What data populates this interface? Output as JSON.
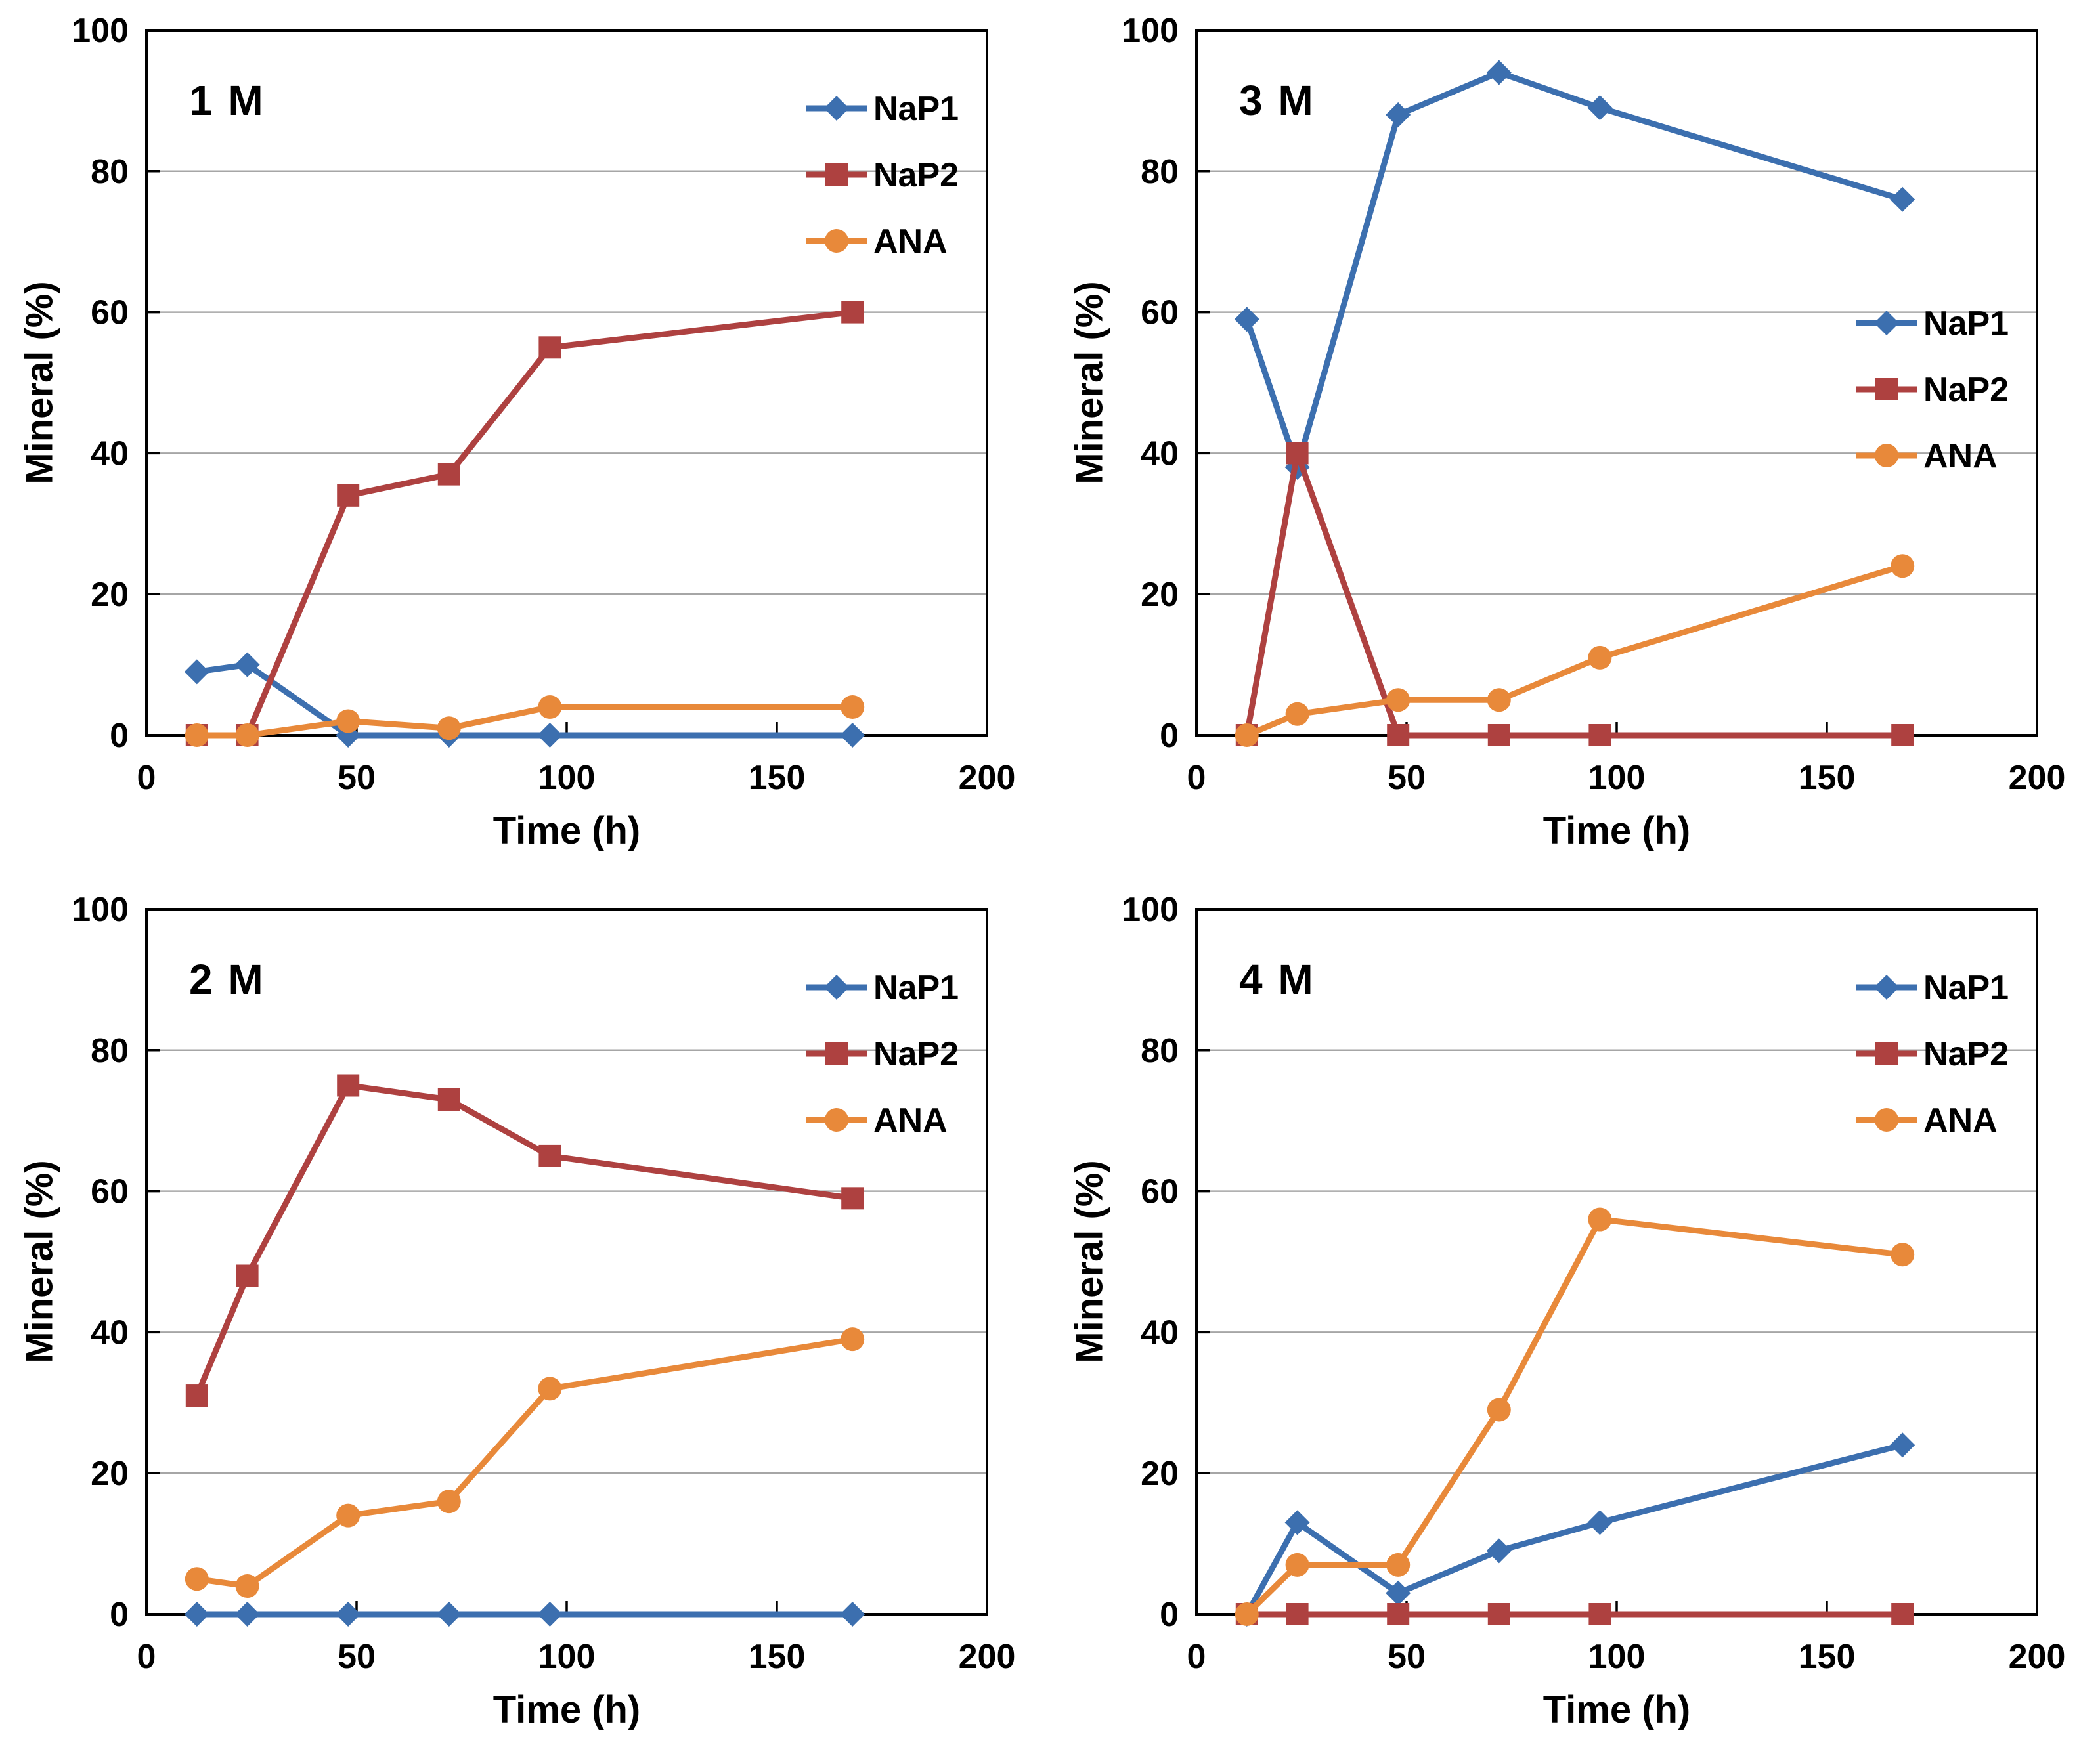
{
  "figure": {
    "background": "#ffffff",
    "text_color": "#000000",
    "grid_color": "#a6a6a6",
    "axis_color": "#000000"
  },
  "chart_data": [
    {
      "type": "line",
      "panel_label": "1 M",
      "xlabel": "Time (h)",
      "ylabel": "Mineral (%)",
      "xlim": [
        0,
        200
      ],
      "ylim": [
        0,
        100
      ],
      "xticks": [
        0,
        50,
        100,
        150,
        200
      ],
      "yticks": [
        0,
        20,
        40,
        60,
        80,
        100
      ],
      "grid": "horizontal",
      "legend_position": "top-right",
      "x": [
        12,
        24,
        48,
        72,
        96,
        168
      ],
      "series": [
        {
          "name": "NaP1",
          "marker": "diamond",
          "color": "#3c6fAF",
          "values": [
            9,
            10,
            0,
            0,
            0,
            0
          ]
        },
        {
          "name": "NaP2",
          "marker": "square",
          "color": "#ae4140",
          "values": [
            0,
            0,
            34,
            37,
            55,
            60
          ]
        },
        {
          "name": "ANA",
          "marker": "circle",
          "color": "#e8893a",
          "values": [
            0,
            0,
            2,
            1,
            4,
            4
          ]
        }
      ]
    },
    {
      "type": "line",
      "panel_label": "3 M",
      "xlabel": "Time (h)",
      "ylabel": "Mineral (%)",
      "xlim": [
        0,
        200
      ],
      "ylim": [
        0,
        100
      ],
      "xticks": [
        0,
        50,
        100,
        150,
        200
      ],
      "yticks": [
        0,
        20,
        40,
        60,
        80,
        100
      ],
      "grid": "horizontal",
      "legend_position": "middle-right",
      "x": [
        12,
        24,
        48,
        72,
        96,
        168
      ],
      "series": [
        {
          "name": "NaP1",
          "marker": "diamond",
          "color": "#3c6fAF",
          "values": [
            59,
            38,
            88,
            94,
            89,
            76
          ]
        },
        {
          "name": "NaP2",
          "marker": "square",
          "color": "#ae4140",
          "values": [
            0,
            40,
            0,
            0,
            0,
            0
          ]
        },
        {
          "name": "ANA",
          "marker": "circle",
          "color": "#e8893a",
          "values": [
            0,
            3,
            5,
            5,
            11,
            24
          ]
        }
      ]
    },
    {
      "type": "line",
      "panel_label": "2 M",
      "xlabel": "Time (h)",
      "ylabel": "Mineral (%)",
      "xlim": [
        0,
        200
      ],
      "ylim": [
        0,
        100
      ],
      "xticks": [
        0,
        50,
        100,
        150,
        200
      ],
      "yticks": [
        0,
        20,
        40,
        60,
        80,
        100
      ],
      "grid": "horizontal",
      "legend_position": "top-right",
      "x": [
        12,
        24,
        48,
        72,
        96,
        168
      ],
      "series": [
        {
          "name": "NaP1",
          "marker": "diamond",
          "color": "#3c6fAF",
          "values": [
            0,
            0,
            0,
            0,
            0,
            0
          ]
        },
        {
          "name": "NaP2",
          "marker": "square",
          "color": "#ae4140",
          "values": [
            31,
            48,
            75,
            73,
            65,
            59
          ]
        },
        {
          "name": "ANA",
          "marker": "circle",
          "color": "#e8893a",
          "values": [
            5,
            4,
            14,
            16,
            32,
            39
          ]
        }
      ]
    },
    {
      "type": "line",
      "panel_label": "4 M",
      "xlabel": "Time (h)",
      "ylabel": "Mineral (%)",
      "xlim": [
        0,
        200
      ],
      "ylim": [
        0,
        100
      ],
      "xticks": [
        0,
        50,
        100,
        150,
        200
      ],
      "yticks": [
        0,
        20,
        40,
        60,
        80,
        100
      ],
      "grid": "horizontal",
      "legend_position": "top-right",
      "x": [
        12,
        24,
        48,
        72,
        96,
        168
      ],
      "series": [
        {
          "name": "NaP1",
          "marker": "diamond",
          "color": "#3c6fAF",
          "values": [
            0,
            13,
            3,
            9,
            13,
            24
          ]
        },
        {
          "name": "NaP2",
          "marker": "square",
          "color": "#ae4140",
          "values": [
            0,
            0,
            0,
            0,
            0,
            0
          ]
        },
        {
          "name": "ANA",
          "marker": "circle",
          "color": "#e8893a",
          "values": [
            0,
            7,
            7,
            29,
            56,
            51
          ]
        }
      ]
    }
  ]
}
